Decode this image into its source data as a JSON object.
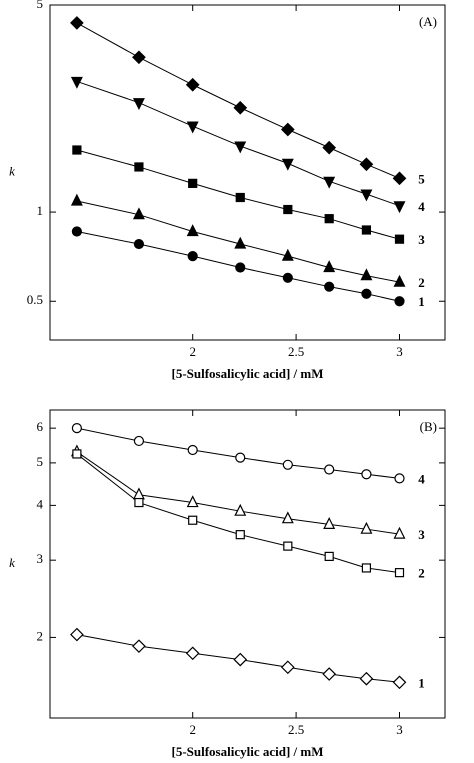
{
  "chart_data": [
    {
      "type": "line",
      "panel": "(A)",
      "x_label": "[5-Sulfosalicylic acid] / mM",
      "y_label": "k",
      "ylog": true,
      "x": [
        1.44,
        1.74,
        2.0,
        2.23,
        2.46,
        2.66,
        2.84,
        3.0
      ],
      "xlim": [
        1.31,
        3.22
      ],
      "xticks": [
        2,
        2.5,
        3
      ],
      "ylim": [
        0.37,
        5
      ],
      "yticks": [
        0.5,
        1,
        5
      ],
      "series": [
        {
          "name": "5",
          "color": "#000",
          "marker": "diamond",
          "filled": true,
          "values": [
            4.35,
            3.33,
            2.69,
            2.25,
            1.9,
            1.65,
            1.45,
            1.3
          ]
        },
        {
          "name": "4",
          "color": "#000",
          "marker": "triangle-down",
          "filled": true,
          "values": [
            2.76,
            2.34,
            1.95,
            1.67,
            1.46,
            1.27,
            1.15,
            1.05
          ]
        },
        {
          "name": "3",
          "color": "#000",
          "marker": "square",
          "filled": true,
          "values": [
            1.62,
            1.42,
            1.25,
            1.12,
            1.02,
            0.95,
            0.87,
            0.81
          ]
        },
        {
          "name": "2",
          "color": "#000",
          "marker": "triangle-up",
          "filled": true,
          "values": [
            1.09,
            0.98,
            0.86,
            0.78,
            0.71,
            0.65,
            0.61,
            0.58
          ]
        },
        {
          "name": "1",
          "color": "#000",
          "marker": "circle",
          "filled": true,
          "values": [
            0.86,
            0.78,
            0.71,
            0.65,
            0.6,
            0.56,
            0.53,
            0.5
          ]
        }
      ]
    },
    {
      "type": "line",
      "panel": "(B)",
      "x_label": "[5-Sulfosalicylic acid] / mM",
      "y_label": "k",
      "ylog": true,
      "x": [
        1.44,
        1.74,
        2.0,
        2.23,
        2.46,
        2.66,
        2.84,
        3.0
      ],
      "xlim": [
        1.31,
        3.22
      ],
      "xticks": [
        2,
        2.5,
        3
      ],
      "ylim": [
        1.31,
        6.6
      ],
      "yticks": [
        2,
        3,
        4,
        5,
        6
      ],
      "series": [
        {
          "name": "4",
          "color": "#000",
          "marker": "circle",
          "filled": false,
          "values": [
            6.0,
            5.61,
            5.35,
            5.14,
            4.95,
            4.83,
            4.71,
            4.61
          ]
        },
        {
          "name": "3",
          "color": "#000",
          "marker": "triangle-up",
          "filled": false,
          "values": [
            5.3,
            4.23,
            4.06,
            3.88,
            3.73,
            3.62,
            3.53,
            3.44
          ]
        },
        {
          "name": "2",
          "color": "#000",
          "marker": "square",
          "filled": false,
          "values": [
            5.24,
            4.06,
            3.7,
            3.43,
            3.23,
            3.06,
            2.88,
            2.81
          ]
        },
        {
          "name": "1",
          "color": "#000",
          "marker": "diamond",
          "filled": false,
          "values": [
            2.03,
            1.91,
            1.84,
            1.78,
            1.71,
            1.65,
            1.61,
            1.58
          ]
        }
      ]
    }
  ]
}
